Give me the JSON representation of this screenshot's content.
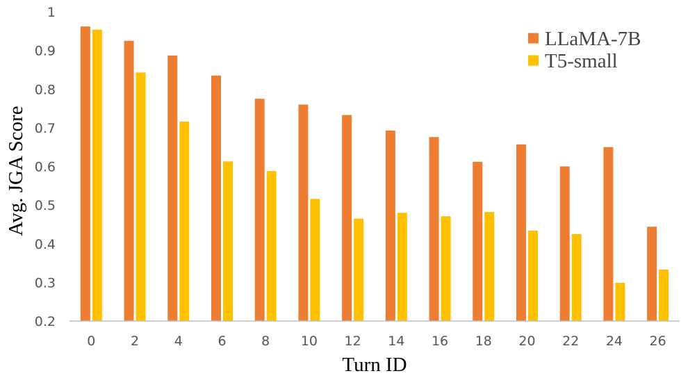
{
  "chart_data": {
    "type": "bar",
    "xlabel": "Turn ID",
    "ylabel": "Avg. JGA Score",
    "categories": [
      "0",
      "2",
      "4",
      "6",
      "8",
      "10",
      "12",
      "14",
      "16",
      "18",
      "20",
      "22",
      "24",
      "26"
    ],
    "ylim": [
      0.2,
      1
    ],
    "yticks": [
      "0.2",
      "0.3",
      "0.4",
      "0.5",
      "0.6",
      "0.7",
      "0.8",
      "0.9",
      "1"
    ],
    "grid": false,
    "legend_position": "top-right",
    "series": [
      {
        "name": "LLaMA-7B",
        "color": "#ED7D31",
        "values": [
          0.962,
          0.925,
          0.887,
          0.835,
          0.775,
          0.76,
          0.733,
          0.693,
          0.676,
          0.612,
          0.657,
          0.6,
          0.65,
          0.444
        ]
      },
      {
        "name": "T5-small",
        "color": "#FFC000",
        "values": [
          0.954,
          0.843,
          0.716,
          0.613,
          0.588,
          0.516,
          0.465,
          0.48,
          0.471,
          0.482,
          0.434,
          0.425,
          0.299,
          0.333
        ]
      }
    ]
  }
}
